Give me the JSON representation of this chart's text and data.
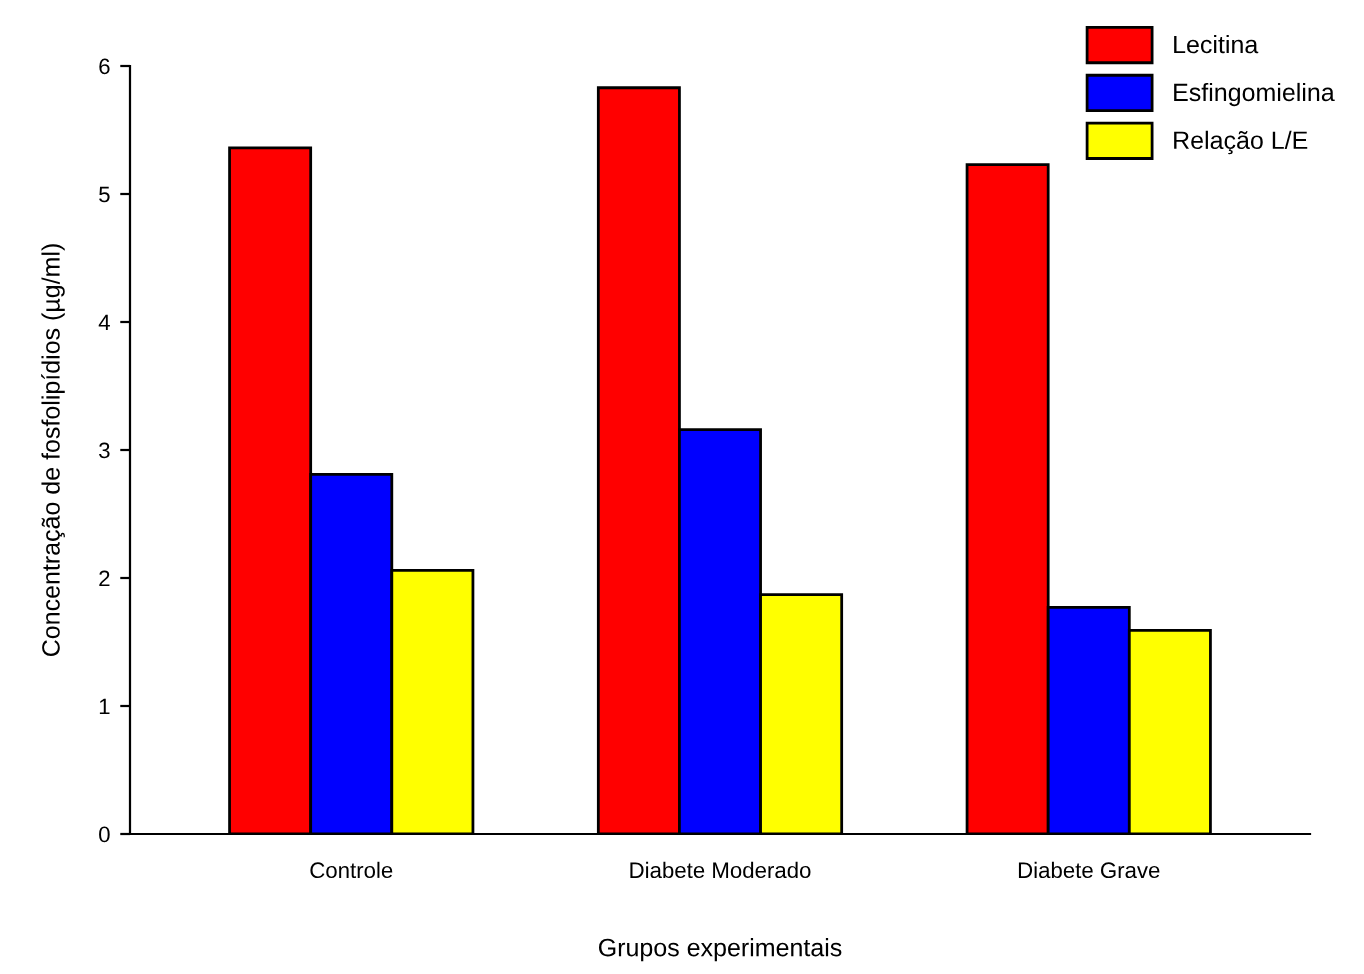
{
  "chart_data": {
    "type": "bar",
    "xlabel": "Grupos experimentais",
    "ylabel": "Concentração de fosfolipídios (µg/ml)",
    "categories": [
      "Controle",
      "Diabete Moderado",
      "Diabete Grave"
    ],
    "series": [
      {
        "name": "Lecitina",
        "color": "#ff0000",
        "values": [
          5.36,
          5.83,
          5.23
        ]
      },
      {
        "name": "Esfingomielina",
        "color": "#0000ff",
        "values": [
          2.81,
          3.16,
          1.77
        ]
      },
      {
        "name": "Relação L/E",
        "color": "#ffff00",
        "values": [
          2.06,
          1.87,
          1.59
        ]
      }
    ],
    "ylim": [
      0,
      6
    ],
    "yticks": [
      0,
      1,
      2,
      3,
      4,
      5,
      6
    ],
    "grid": false,
    "legend": "top right"
  }
}
